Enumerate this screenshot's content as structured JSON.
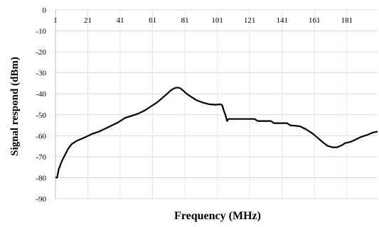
{
  "chart_data": {
    "type": "line",
    "xlabel": "Frequency (MHz)",
    "ylabel": "Signal respond (dBm)",
    "xlim": [
      1,
      200
    ],
    "ylim": [
      -90,
      0
    ],
    "x_ticks": [
      1,
      21,
      41,
      61,
      81,
      101,
      121,
      141,
      161,
      181
    ],
    "y_ticks": [
      0,
      -10,
      -20,
      -30,
      -40,
      -50,
      -60,
      -70,
      -80,
      -90
    ],
    "grid": true,
    "series": [
      {
        "color": "#000000",
        "points": [
          [
            1,
            -80
          ],
          [
            2,
            -80
          ],
          [
            3,
            -76
          ],
          [
            5,
            -72
          ],
          [
            7,
            -69
          ],
          [
            9,
            -66
          ],
          [
            11,
            -64
          ],
          [
            14,
            -62.5
          ],
          [
            17,
            -61.5
          ],
          [
            20,
            -60.5
          ],
          [
            24,
            -59
          ],
          [
            28,
            -58
          ],
          [
            32,
            -56.5
          ],
          [
            36,
            -55
          ],
          [
            40,
            -53.5
          ],
          [
            44,
            -51.5
          ],
          [
            48,
            -50.5
          ],
          [
            52,
            -49.5
          ],
          [
            56,
            -48
          ],
          [
            60,
            -46
          ],
          [
            64,
            -44
          ],
          [
            67,
            -42
          ],
          [
            70,
            -40
          ],
          [
            72,
            -38.5
          ],
          [
            74,
            -37.5
          ],
          [
            76,
            -37
          ],
          [
            78,
            -37.3
          ],
          [
            80,
            -38.5
          ],
          [
            82,
            -40
          ],
          [
            85,
            -41.5
          ],
          [
            88,
            -43
          ],
          [
            92,
            -44.2
          ],
          [
            96,
            -45
          ],
          [
            100,
            -45.2
          ],
          [
            103,
            -45
          ],
          [
            104,
            -45.5
          ],
          [
            105,
            -48
          ],
          [
            106,
            -50
          ],
          [
            107,
            -53
          ],
          [
            108,
            -52
          ],
          [
            112,
            -52
          ],
          [
            118,
            -52
          ],
          [
            124,
            -52
          ],
          [
            126,
            -53
          ],
          [
            134,
            -53
          ],
          [
            136,
            -54
          ],
          [
            144,
            -54
          ],
          [
            146,
            -55
          ],
          [
            152,
            -55.5
          ],
          [
            156,
            -57
          ],
          [
            160,
            -59
          ],
          [
            163,
            -61
          ],
          [
            166,
            -63
          ],
          [
            169,
            -64.8
          ],
          [
            172,
            -65.5
          ],
          [
            175,
            -65.5
          ],
          [
            178,
            -64.5
          ],
          [
            180,
            -63.5
          ],
          [
            183,
            -63
          ],
          [
            186,
            -62
          ],
          [
            190,
            -60.5
          ],
          [
            194,
            -59.5
          ],
          [
            197,
            -58.5
          ],
          [
            200,
            -58
          ]
        ]
      }
    ]
  }
}
